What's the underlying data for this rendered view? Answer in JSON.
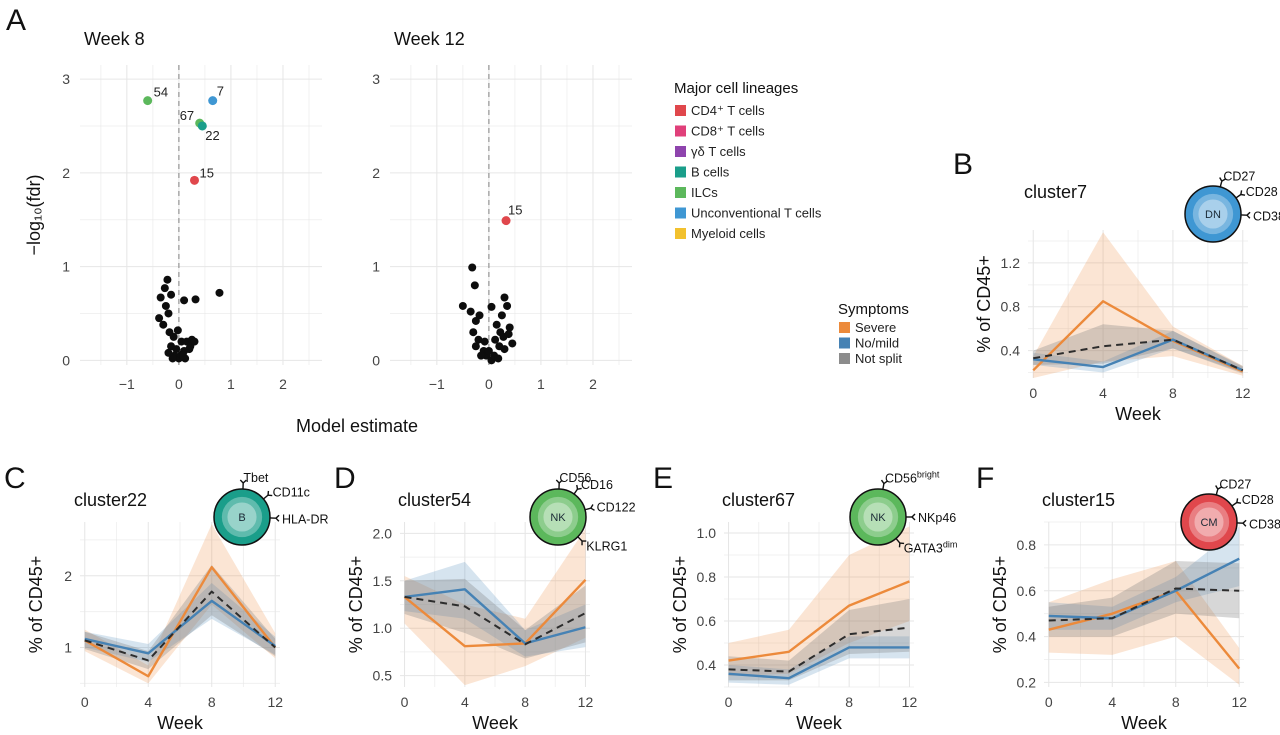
{
  "figure": {
    "panel_letters": [
      "A",
      "B",
      "C",
      "D",
      "E",
      "F"
    ],
    "volcano_x_axis_label": "Model estimate",
    "volcano_y_axis_label": "−log₁₀(fdr)",
    "timecourse_x_axis_label": "Week",
    "timecourse_y_axis_label": "% of CD45+"
  },
  "legends": {
    "lineage_title": "Major cell lineages",
    "lineage_items": [
      {
        "label": "CD4⁺ T cells",
        "color": "#e0474c"
      },
      {
        "label": "CD8⁺ T cells",
        "color": "#e0407a"
      },
      {
        "label": "γδ T cells",
        "color": "#8e44ad"
      },
      {
        "label": "B cells",
        "color": "#1a9e8a"
      },
      {
        "label": "ILCs",
        "color": "#5cb85c"
      },
      {
        "label": "Unconventional T cells",
        "color": "#3f97d3"
      },
      {
        "label": "Myeloid cells",
        "color": "#f2c12e"
      }
    ],
    "symptoms_title": "Symptoms",
    "symptoms_items": [
      {
        "label": "Severe",
        "color": "#ec8a3b"
      },
      {
        "label": "No/mild",
        "color": "#4682b4"
      },
      {
        "label": "Not split",
        "color": "#8c8c8c"
      }
    ]
  },
  "chart_data": [
    {
      "id": "A1",
      "type": "scatter",
      "title": "Week 8",
      "xlabel": "Model estimate",
      "ylabel": "−log₁₀(fdr)",
      "xlim": [
        -1.9,
        2.75
      ],
      "ylim": [
        -0.05,
        3.15
      ],
      "xticks": [
        -1,
        0,
        1,
        2
      ],
      "yticks": [
        0,
        1,
        2,
        3
      ],
      "labeled_points": [
        {
          "x": -0.6,
          "y": 2.77,
          "label": "54",
          "color": "#5cb85c"
        },
        {
          "x": 0.65,
          "y": 2.77,
          "label": "7",
          "color": "#3f97d3"
        },
        {
          "x": 0.4,
          "y": 2.53,
          "label": "67",
          "color": "#5cb85c"
        },
        {
          "x": 0.45,
          "y": 2.5,
          "label": "22",
          "color": "#1a9e8a"
        },
        {
          "x": 0.3,
          "y": 1.92,
          "label": "15",
          "color": "#e0474c"
        }
      ],
      "points": [
        [
          -0.22,
          0.86
        ],
        [
          -0.27,
          0.77
        ],
        [
          -0.15,
          0.7
        ],
        [
          -0.35,
          0.67
        ],
        [
          0.1,
          0.64
        ],
        [
          0.32,
          0.65
        ],
        [
          0.78,
          0.72
        ],
        [
          -0.25,
          0.58
        ],
        [
          -0.38,
          0.45
        ],
        [
          -0.2,
          0.5
        ],
        [
          -0.3,
          0.38
        ],
        [
          -0.18,
          0.3
        ],
        [
          -0.1,
          0.25
        ],
        [
          0.05,
          0.2
        ],
        [
          0.15,
          0.2
        ],
        [
          0.25,
          0.22
        ],
        [
          -0.15,
          0.15
        ],
        [
          -0.05,
          0.12
        ],
        [
          0.1,
          0.1
        ],
        [
          0.2,
          0.12
        ],
        [
          -0.08,
          0.05
        ],
        [
          0.0,
          0.02
        ],
        [
          0.05,
          0.06
        ],
        [
          -0.12,
          0.02
        ],
        [
          0.12,
          0.02
        ],
        [
          -0.2,
          0.08
        ],
        [
          0.22,
          0.15
        ],
        [
          0.3,
          0.2
        ],
        [
          -0.02,
          0.32
        ],
        [
          0.08,
          0.05
        ]
      ]
    },
    {
      "id": "A2",
      "type": "scatter",
      "title": "Week 12",
      "xlabel": "Model estimate",
      "ylabel": "",
      "xlim": [
        -1.9,
        2.75
      ],
      "ylim": [
        -0.05,
        3.15
      ],
      "xticks": [
        -1,
        0,
        1,
        2
      ],
      "yticks": [
        0,
        1,
        2,
        3
      ],
      "labeled_points": [
        {
          "x": 0.33,
          "y": 1.49,
          "label": "15",
          "color": "#e0474c"
        }
      ],
      "points": [
        [
          -0.32,
          0.99
        ],
        [
          -0.27,
          0.8
        ],
        [
          -0.5,
          0.58
        ],
        [
          -0.35,
          0.52
        ],
        [
          -0.25,
          0.42
        ],
        [
          0.05,
          0.57
        ],
        [
          0.3,
          0.67
        ],
        [
          0.35,
          0.58
        ],
        [
          -0.18,
          0.48
        ],
        [
          0.25,
          0.48
        ],
        [
          0.15,
          0.38
        ],
        [
          0.4,
          0.35
        ],
        [
          -0.3,
          0.3
        ],
        [
          -0.2,
          0.22
        ],
        [
          -0.1,
          0.1
        ],
        [
          -0.05,
          0.05
        ],
        [
          0.0,
          0.1
        ],
        [
          0.05,
          0.0
        ],
        [
          0.1,
          0.05
        ],
        [
          0.2,
          0.15
        ],
        [
          0.28,
          0.25
        ],
        [
          0.45,
          0.18
        ],
        [
          -0.15,
          0.05
        ],
        [
          0.12,
          0.22
        ],
        [
          0.3,
          0.12
        ],
        [
          0.22,
          0.3
        ],
        [
          -0.08,
          0.2
        ],
        [
          0.18,
          0.02
        ],
        [
          -0.25,
          0.15
        ],
        [
          0.38,
          0.28
        ]
      ]
    },
    {
      "id": "B",
      "type": "line",
      "title": "cluster7",
      "xlabel": "Week",
      "ylabel": "% of CD45+",
      "x": [
        0,
        4,
        8,
        12
      ],
      "xticks": [
        0,
        4,
        8,
        12
      ],
      "yticks": [
        0.4,
        0.8,
        1.2
      ],
      "ylim": [
        0.15,
        1.5
      ],
      "cell": {
        "label": "DN",
        "color": "#3f97d3"
      },
      "markers": [
        "CD27",
        "CD28",
        "CD38"
      ],
      "series": [
        {
          "key": "severe",
          "color": "#ec8a3b",
          "values": [
            0.22,
            0.85,
            0.49,
            0.21
          ],
          "band_lo": [
            0.15,
            0.3,
            0.35,
            0.17
          ],
          "band_hi": [
            0.35,
            1.48,
            0.62,
            0.26
          ]
        },
        {
          "key": "nomild",
          "color": "#4682b4",
          "values": [
            0.32,
            0.25,
            0.5,
            0.22
          ],
          "band_lo": [
            0.27,
            0.2,
            0.42,
            0.2
          ],
          "band_hi": [
            0.38,
            0.3,
            0.58,
            0.25
          ]
        },
        {
          "key": "notsplit",
          "color": "#2d2d2d",
          "dashed": true,
          "values": [
            0.33,
            0.44,
            0.5,
            0.22
          ],
          "band_lo": [
            0.27,
            0.28,
            0.42,
            0.19
          ],
          "band_hi": [
            0.4,
            0.64,
            0.58,
            0.26
          ]
        }
      ]
    },
    {
      "id": "C",
      "type": "line",
      "title": "cluster22",
      "xlabel": "Week",
      "ylabel": "% of CD45+",
      "x": [
        0,
        4,
        8,
        12
      ],
      "xticks": [
        0,
        4,
        8,
        12
      ],
      "yticks": [
        1,
        2
      ],
      "ylim": [
        0.45,
        2.75
      ],
      "cell": {
        "label": "B",
        "color": "#1a9e8a"
      },
      "markers": [
        "Tbet",
        "CD11c",
        "HLA-DR"
      ],
      "series": [
        {
          "key": "severe",
          "color": "#ec8a3b",
          "values": [
            1.1,
            0.6,
            2.12,
            1.0
          ],
          "band_lo": [
            0.95,
            0.5,
            1.6,
            0.85
          ],
          "band_hi": [
            1.25,
            0.75,
            2.72,
            1.2
          ]
        },
        {
          "key": "nomild",
          "color": "#4682b4",
          "values": [
            1.12,
            0.92,
            1.65,
            1.02
          ],
          "band_lo": [
            1.0,
            0.8,
            1.4,
            0.9
          ],
          "band_hi": [
            1.22,
            1.05,
            1.9,
            1.15
          ]
        },
        {
          "key": "notsplit",
          "color": "#2d2d2d",
          "dashed": true,
          "values": [
            1.1,
            0.82,
            1.78,
            1.0
          ],
          "band_lo": [
            0.98,
            0.7,
            1.45,
            0.88
          ],
          "band_hi": [
            1.22,
            0.95,
            2.15,
            1.12
          ]
        }
      ]
    },
    {
      "id": "D",
      "type": "line",
      "title": "cluster54",
      "xlabel": "Week",
      "ylabel": "% of CD45+",
      "x": [
        0,
        4,
        8,
        12
      ],
      "xticks": [
        0,
        4,
        8,
        12
      ],
      "yticks": [
        0.5,
        1.0,
        1.5,
        2.0
      ],
      "ylim": [
        0.38,
        2.12
      ],
      "cell": {
        "label": "NK",
        "color": "#5cb85c"
      },
      "markers": [
        "CD56",
        "CD16",
        "CD122",
        "KLRG1"
      ],
      "series": [
        {
          "key": "severe",
          "color": "#ec8a3b",
          "values": [
            1.33,
            0.81,
            0.84,
            1.51
          ],
          "band_lo": [
            1.05,
            0.4,
            0.6,
            0.9
          ],
          "band_hi": [
            1.55,
            1.25,
            1.1,
            2.05
          ]
        },
        {
          "key": "nomild",
          "color": "#4682b4",
          "values": [
            1.33,
            1.41,
            0.84,
            1.01
          ],
          "band_lo": [
            1.18,
            1.1,
            0.7,
            0.8
          ],
          "band_hi": [
            1.5,
            1.7,
            0.98,
            1.25
          ]
        },
        {
          "key": "notsplit",
          "color": "#2d2d2d",
          "dashed": true,
          "values": [
            1.33,
            1.23,
            0.83,
            1.16
          ],
          "band_lo": [
            1.15,
            0.95,
            0.68,
            0.85
          ],
          "band_hi": [
            1.5,
            1.52,
            0.98,
            1.45
          ]
        }
      ]
    },
    {
      "id": "E",
      "type": "line",
      "title": "cluster67",
      "xlabel": "Week",
      "ylabel": "% of CD45+",
      "x": [
        0,
        4,
        8,
        12
      ],
      "xticks": [
        0,
        4,
        8,
        12
      ],
      "yticks": [
        0.4,
        0.6,
        0.8,
        1.0
      ],
      "ylim": [
        0.3,
        1.05
      ],
      "cell": {
        "label": "NK",
        "color": "#5cb85c"
      },
      "markers": [
        "CD56bright",
        "NKp46",
        "GATA3dim"
      ],
      "series": [
        {
          "key": "severe",
          "color": "#ec8a3b",
          "values": [
            0.42,
            0.46,
            0.67,
            0.78
          ],
          "band_lo": [
            0.35,
            0.36,
            0.5,
            0.6
          ],
          "band_hi": [
            0.5,
            0.56,
            0.9,
            1.03
          ]
        },
        {
          "key": "nomild",
          "color": "#4682b4",
          "values": [
            0.36,
            0.34,
            0.48,
            0.48
          ],
          "band_lo": [
            0.32,
            0.31,
            0.43,
            0.43
          ],
          "band_hi": [
            0.4,
            0.38,
            0.53,
            0.53
          ]
        },
        {
          "key": "notsplit",
          "color": "#2d2d2d",
          "dashed": true,
          "values": [
            0.38,
            0.37,
            0.54,
            0.57
          ],
          "band_lo": [
            0.33,
            0.33,
            0.45,
            0.46
          ],
          "band_hi": [
            0.44,
            0.42,
            0.65,
            0.7
          ]
        }
      ]
    },
    {
      "id": "F",
      "type": "line",
      "title": "cluster15",
      "xlabel": "Week",
      "ylabel": "% of CD45+",
      "x": [
        0,
        4,
        8,
        12
      ],
      "xticks": [
        0,
        4,
        8,
        12
      ],
      "yticks": [
        0.2,
        0.4,
        0.6,
        0.8
      ],
      "ylim": [
        0.18,
        0.9
      ],
      "cell": {
        "label": "CM",
        "color": "#e0474c"
      },
      "markers": [
        "CD27",
        "CD28",
        "CD38"
      ],
      "series": [
        {
          "key": "severe",
          "color": "#ec8a3b",
          "values": [
            0.43,
            0.5,
            0.6,
            0.26
          ],
          "band_lo": [
            0.33,
            0.32,
            0.4,
            0.19
          ],
          "band_hi": [
            0.55,
            0.65,
            0.73,
            0.35
          ]
        },
        {
          "key": "nomild",
          "color": "#4682b4",
          "values": [
            0.49,
            0.48,
            0.6,
            0.74
          ],
          "band_lo": [
            0.43,
            0.43,
            0.55,
            0.62
          ],
          "band_hi": [
            0.55,
            0.53,
            0.66,
            0.88
          ]
        },
        {
          "key": "notsplit",
          "color": "#2d2d2d",
          "dashed": true,
          "values": [
            0.47,
            0.48,
            0.61,
            0.6
          ],
          "band_lo": [
            0.4,
            0.4,
            0.5,
            0.48
          ],
          "band_hi": [
            0.53,
            0.57,
            0.73,
            0.72
          ]
        }
      ]
    }
  ]
}
